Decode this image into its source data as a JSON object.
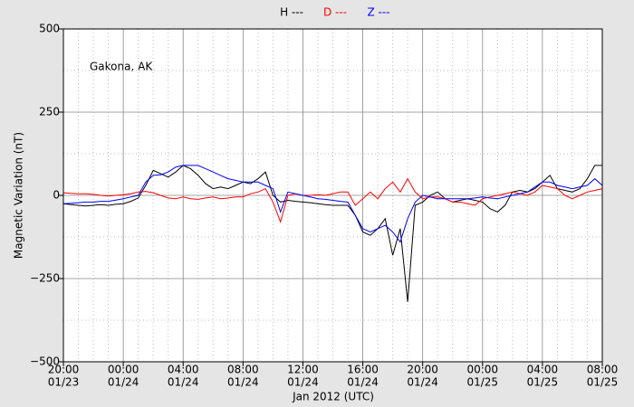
{
  "chart_data": {
    "type": "line",
    "x_label": "Jan 2012 (UTC)",
    "y_label": "Magnetic Variation (nT)",
    "annotation": "Gakona, AK",
    "x": [
      0,
      0.5,
      1,
      1.5,
      2,
      2.5,
      3,
      3.5,
      4,
      4.5,
      5,
      5.5,
      6,
      6.5,
      7,
      7.5,
      8,
      8.5,
      9,
      9.5,
      10,
      10.5,
      11,
      11.5,
      12,
      12.5,
      13,
      13.5,
      14,
      14.5,
      15,
      15.5,
      16,
      16.5,
      17,
      17.5,
      18,
      18.5,
      19,
      19.5,
      20,
      20.5,
      21,
      21.5,
      22,
      22.5,
      23,
      23.5,
      24,
      24.5,
      25,
      25.5,
      26,
      26.5,
      27,
      27.5,
      28,
      28.5,
      29,
      29.5,
      30,
      30.5,
      31,
      31.5,
      32,
      32.5,
      33,
      33.5,
      34,
      34.5,
      35,
      35.5,
      36
    ],
    "series": [
      {
        "name": "H ---",
        "color": "#000000",
        "values": [
          -25,
          -28,
          -30,
          -32,
          -30,
          -28,
          -30,
          -27,
          -25,
          -18,
          -8,
          30,
          75,
          65,
          55,
          70,
          90,
          80,
          60,
          35,
          20,
          25,
          20,
          30,
          40,
          35,
          50,
          70,
          0,
          -20,
          -15,
          -18,
          -20,
          -22,
          -25,
          -28,
          -30,
          -30,
          -30,
          -60,
          -110,
          -120,
          -100,
          -70,
          -180,
          -100,
          -320,
          -30,
          -20,
          0,
          10,
          -10,
          -20,
          -15,
          -10,
          -15,
          -20,
          -40,
          -50,
          -30,
          10,
          15,
          10,
          20,
          40,
          60,
          20,
          15,
          10,
          20,
          50,
          90,
          90
        ]
      },
      {
        "name": "D ---",
        "color": "#ff0000",
        "values": [
          8,
          6,
          5,
          5,
          3,
          0,
          -2,
          0,
          2,
          5,
          10,
          12,
          8,
          0,
          -8,
          -10,
          -5,
          -10,
          -12,
          -8,
          -5,
          -10,
          -8,
          -5,
          -5,
          5,
          10,
          20,
          -20,
          -80,
          0,
          5,
          0,
          0,
          2,
          0,
          5,
          10,
          10,
          -30,
          -10,
          10,
          -10,
          20,
          40,
          10,
          50,
          10,
          -10,
          -5,
          -5,
          -10,
          -20,
          -20,
          -25,
          -30,
          -10,
          -5,
          0,
          5,
          10,
          5,
          0,
          10,
          30,
          25,
          20,
          0,
          -10,
          0,
          10,
          15,
          20
        ]
      },
      {
        "name": "Z ---",
        "color": "#0000ff",
        "values": [
          -25,
          -24,
          -22,
          -20,
          -20,
          -18,
          -18,
          -14,
          -10,
          -5,
          0,
          40,
          60,
          62,
          70,
          85,
          90,
          90,
          90,
          80,
          70,
          60,
          50,
          45,
          40,
          40,
          40,
          30,
          20,
          -50,
          10,
          5,
          0,
          -5,
          -10,
          -12,
          -15,
          -18,
          -20,
          -60,
          -100,
          -110,
          -100,
          -90,
          -110,
          -140,
          -70,
          -20,
          0,
          -5,
          -10,
          -10,
          -10,
          -10,
          -10,
          -8,
          -5,
          -8,
          -10,
          -5,
          0,
          5,
          10,
          25,
          40,
          40,
          30,
          25,
          20,
          25,
          30,
          50,
          30
        ]
      }
    ],
    "xlim": [
      0,
      36
    ],
    "xticks": [
      {
        "value": 0,
        "label": [
          "20:00",
          "01/23"
        ]
      },
      {
        "value": 4,
        "label": [
          "00:00",
          "01/24"
        ]
      },
      {
        "value": 8,
        "label": [
          "04:00",
          "01/24"
        ]
      },
      {
        "value": 12,
        "label": [
          "08:00",
          "01/24"
        ]
      },
      {
        "value": 16,
        "label": [
          "12:00",
          "01/24"
        ]
      },
      {
        "value": 20,
        "label": [
          "16:00",
          "01/24"
        ]
      },
      {
        "value": 24,
        "label": [
          "20:00",
          "01/24"
        ]
      },
      {
        "value": 28,
        "label": [
          "00:00",
          "01/25"
        ]
      },
      {
        "value": 32,
        "label": [
          "04:00",
          "01/25"
        ]
      },
      {
        "value": 36,
        "label": [
          "08:00",
          "01/25"
        ]
      }
    ],
    "ylim": [
      -500,
      500
    ],
    "yticks": [
      {
        "value": -500,
        "label": "−500"
      },
      {
        "value": -250,
        "label": "−250"
      },
      0,
      250,
      500
    ],
    "grid": true
  }
}
